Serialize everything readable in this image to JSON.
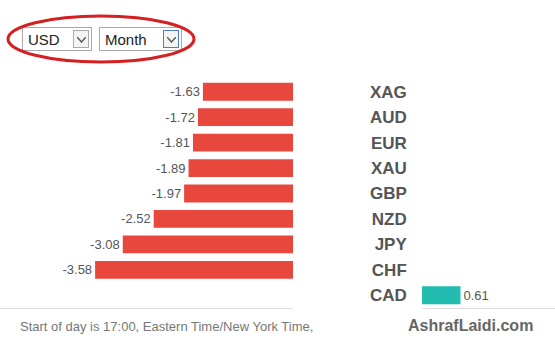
{
  "controls": [
    "USD",
    "Month"
  ],
  "chart_data": {
    "type": "bar",
    "orientation": "horizontal",
    "categories": [
      "CAD",
      "XAG",
      "AUD",
      "EUR",
      "XAU",
      "GBP",
      "NZD",
      "JPY",
      "CHF"
    ],
    "values": [
      0.61,
      -1.63,
      -1.72,
      -1.81,
      -1.89,
      -1.97,
      -2.52,
      -3.08,
      -3.58
    ],
    "colors": [
      "#22bcb0",
      "#e8473e",
      "#e8473e",
      "#e8473e",
      "#e8473e",
      "#e8473e",
      "#e8473e",
      "#e8473e",
      "#e8473e"
    ],
    "xlim": [
      -5.3,
      2.1
    ],
    "xticks": [],
    "data_labels": true,
    "tick_labels": "y",
    "grid": false
  },
  "footer": "Start of day is 17:00, Eastern Time/New York Time,",
  "source": "AshrafLaidi.com"
}
